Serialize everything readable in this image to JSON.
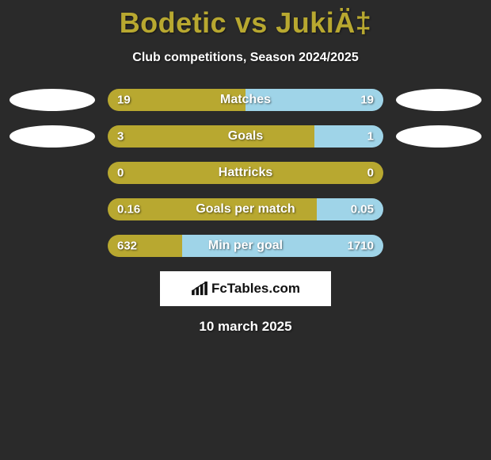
{
  "title": "Bodetic vs JukiÄ‡",
  "subtitle": "Club competitions, Season 2024/2025",
  "date": "10 march 2025",
  "logo_text": "FcTables.com",
  "colors": {
    "left": "#b8a830",
    "right": "#9fd4e8",
    "background": "#2a2a2a",
    "badge": "#ffffff",
    "text": "#ffffff"
  },
  "stats": [
    {
      "label": "Matches",
      "left_value": "19",
      "right_value": "19",
      "left_pct": 50,
      "right_pct": 50,
      "show_badges": true
    },
    {
      "label": "Goals",
      "left_value": "3",
      "right_value": "1",
      "left_pct": 75,
      "right_pct": 25,
      "show_badges": true
    },
    {
      "label": "Hattricks",
      "left_value": "0",
      "right_value": "0",
      "left_pct": 100,
      "right_pct": 0,
      "show_badges": false
    },
    {
      "label": "Goals per match",
      "left_value": "0.16",
      "right_value": "0.05",
      "left_pct": 76,
      "right_pct": 24,
      "show_badges": false
    },
    {
      "label": "Min per goal",
      "left_value": "632",
      "right_value": "1710",
      "left_pct": 27,
      "right_pct": 73,
      "show_badges": false
    }
  ]
}
